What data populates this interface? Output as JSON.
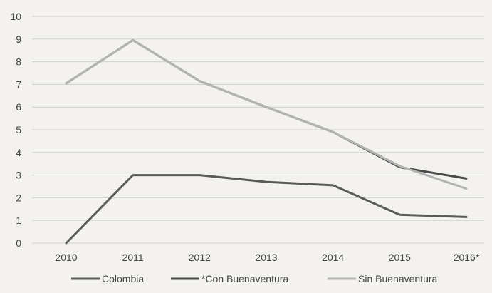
{
  "chart_data": {
    "type": "line",
    "categories": [
      "2010",
      "2011",
      "2012",
      "2013",
      "2014",
      "2015",
      "2016*"
    ],
    "ylim": [
      0,
      10
    ],
    "yticks": [
      "0",
      "1",
      "2",
      "3",
      "4",
      "5",
      "6",
      "7",
      "8",
      "9",
      "10"
    ],
    "grid": true,
    "legend_position": "bottom",
    "series": [
      {
        "name": "Colombia",
        "color": "#5a5a5a",
        "values": [
          0,
          3.0,
          3.0,
          2.7,
          2.55,
          1.25,
          1.15
        ]
      },
      {
        "name": "*Con Buenaventura",
        "color": "#4a4a4a",
        "values": [
          7.05,
          8.95,
          7.15,
          6.0,
          4.9,
          3.35,
          2.85
        ]
      },
      {
        "name": "Sin Buenaventura",
        "color": "#b3b3b3",
        "values": [
          7.05,
          8.95,
          7.15,
          6.0,
          4.9,
          3.4,
          2.4
        ]
      }
    ]
  }
}
